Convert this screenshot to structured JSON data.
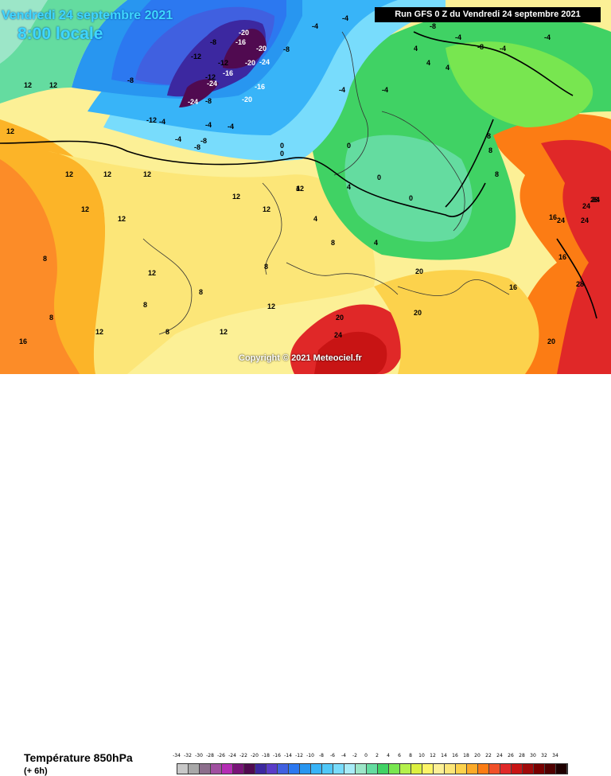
{
  "map": {
    "date_line": "Vendredi 24 septembre 2021",
    "time_line": "8:00 locale",
    "run_info": "Run GFS 0 Z du Vendredi 24 septembre 2021",
    "copyright": "Copyright © 2021 Meteociel.fr",
    "contour_labels": [
      "-20",
      "-16",
      "-24",
      "-20",
      "-24",
      "-20",
      "-16",
      "-12",
      "-8",
      "-8",
      "-8",
      "-12",
      "-16",
      "-20",
      "-24",
      "-12",
      "-12",
      "-8",
      "-4",
      "-4",
      "-4",
      "-4",
      "-8",
      "-8",
      "-4",
      "-4",
      "-8",
      "-4",
      "-8",
      "-4",
      "-4",
      "-4",
      "-4",
      "0",
      "0",
      "0",
      "0",
      "0",
      "4",
      "4",
      "4",
      "4",
      "4",
      "4",
      "4",
      "8",
      "8",
      "8",
      "8",
      "12",
      "12",
      "12",
      "12",
      "12",
      "12",
      "12",
      "12",
      "12",
      "12",
      "12",
      "12",
      "12",
      "12",
      "12",
      "8",
      "8",
      "8",
      "8",
      "8",
      "8",
      "16",
      "16",
      "16",
      "16",
      "20",
      "20",
      "20",
      "20",
      "24",
      "24",
      "24",
      "24",
      "24",
      "28",
      "28"
    ]
  },
  "legend": {
    "title": "Température 850hPa",
    "subtitle": "(+ 6h)",
    "scale": [
      "-34",
      "-32",
      "-30",
      "-28",
      "-26",
      "-24",
      "-22",
      "-20",
      "-18",
      "-16",
      "-14",
      "-12",
      "-10",
      "-8",
      "-6",
      "-4",
      "-2",
      "0",
      "2",
      "4",
      "6",
      "8",
      "10",
      "12",
      "14",
      "16",
      "18",
      "20",
      "22",
      "24",
      "26",
      "28",
      "30",
      "32",
      "34"
    ],
    "colors": [
      "#c8c8c8",
      "#a8a8a8",
      "#8c6e8c",
      "#a050a0",
      "#b42db4",
      "#781478",
      "#500a50",
      "#3c28a0",
      "#5a3cc8",
      "#4060e0",
      "#2c78f0",
      "#2896f0",
      "#38b4f8",
      "#50c8f8",
      "#78dcfc",
      "#a8ecf8",
      "#9ce6c8",
      "#64dca0",
      "#40d264",
      "#78e650",
      "#b4f04c",
      "#dcf040",
      "#fcf468",
      "#fcf096",
      "#fce678",
      "#fcd24c",
      "#fcaa28",
      "#fc7c14",
      "#f05028",
      "#e02828",
      "#c81414",
      "#a00a0a",
      "#780000",
      "#500000",
      "#1e0000"
    ]
  },
  "colors": {
    "cold_purple": "#5a1a6e",
    "deep_blue": "#2a3cd6",
    "blue": "#1e78f0",
    "light_blue": "#50c8f8",
    "cyan": "#96e6f8",
    "green": "#3ccd64",
    "yellow_green": "#c8ec40",
    "pale_yellow": "#fcf096",
    "yellow": "#fce650",
    "orange": "#fcb428",
    "red": "#f05028",
    "dark_red": "#c81414"
  }
}
